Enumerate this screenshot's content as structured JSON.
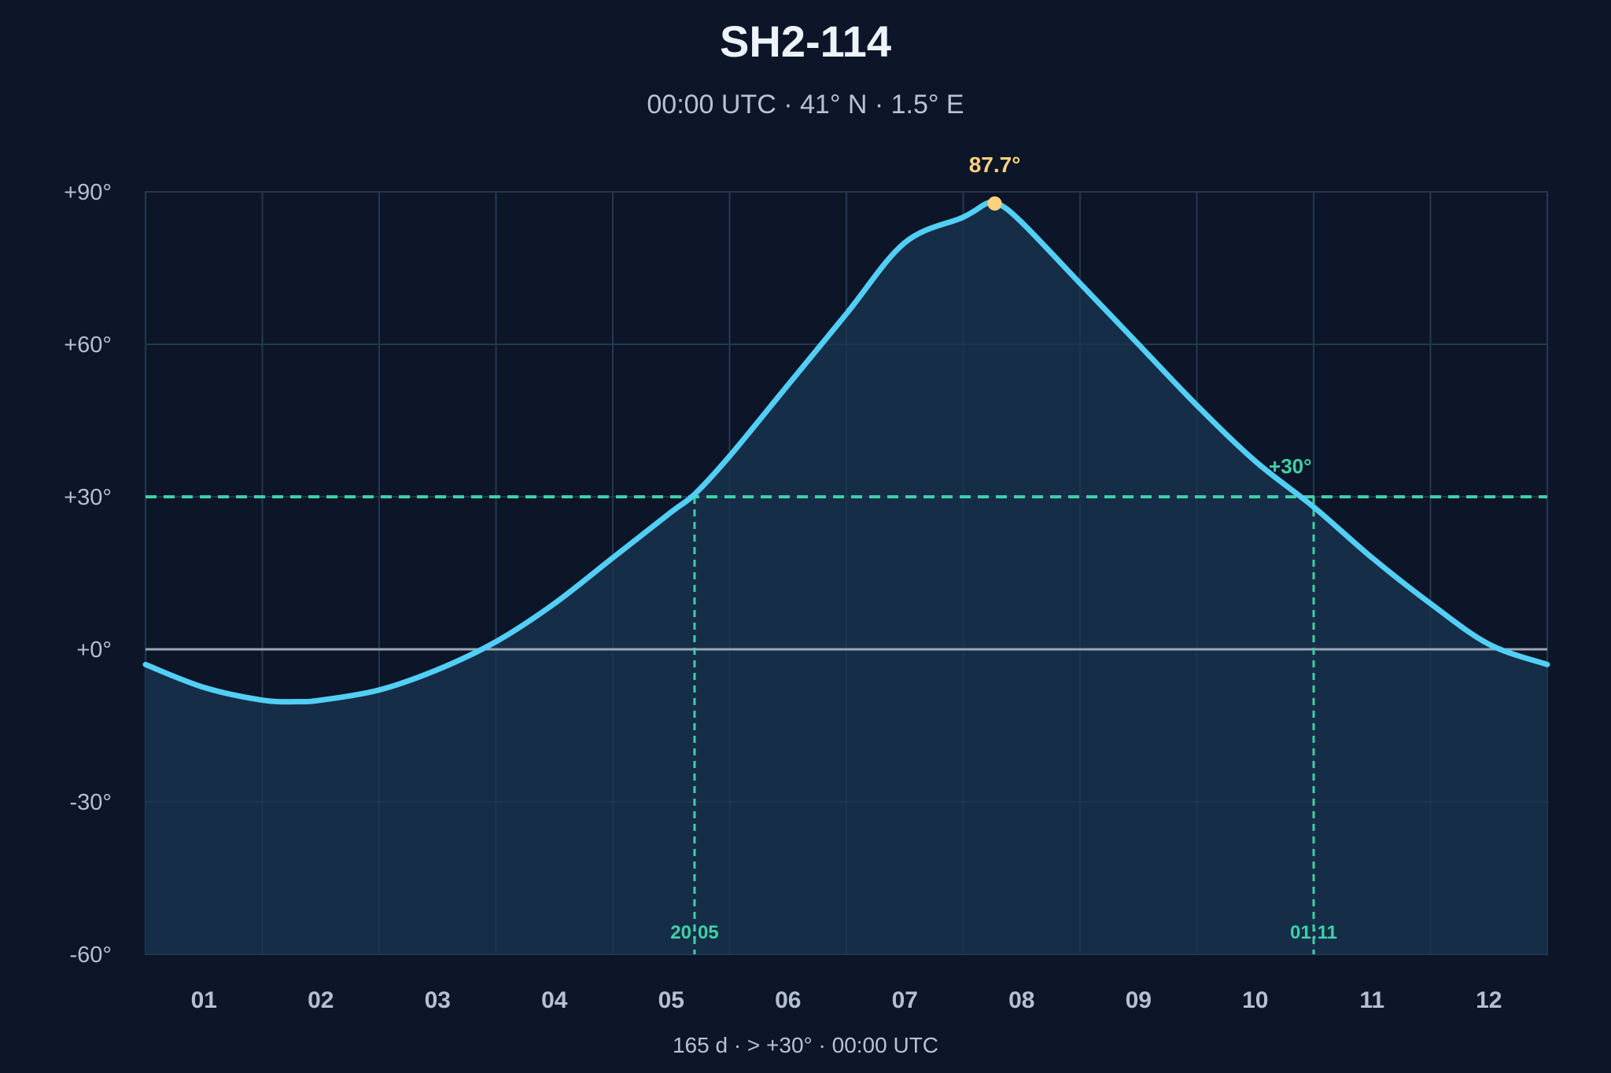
{
  "chart_data": {
    "type": "line",
    "title": "SH2-114",
    "subtitle": "00:00 UTC · 41° N · 1.5° E",
    "footer": "165 d  ·  > +30°  ·  00:00 UTC",
    "x_months": [
      "01",
      "02",
      "03",
      "04",
      "05",
      "06",
      "07",
      "08",
      "09",
      "10",
      "11",
      "12"
    ],
    "xlim": [
      0.5,
      12.5
    ],
    "ylim": [
      -60,
      90
    ],
    "y_ticks": [
      90,
      60,
      30,
      0,
      -30,
      -60
    ],
    "y_tick_labels": [
      "+90°",
      "+60°",
      "+30°",
      "+0°",
      "-30°",
      "-60°"
    ],
    "grid": true,
    "series": [
      {
        "x": [
          0.5,
          1.0,
          1.5,
          1.8,
          2.0,
          2.5,
          3.0,
          3.5,
          4.0,
          4.5,
          5.0,
          5.2,
          5.5,
          6.0,
          6.5,
          7.0,
          7.5,
          7.7,
          7.8,
          8.0,
          8.5,
          9.0,
          9.5,
          10.0,
          10.5,
          11.0,
          11.5,
          12.0,
          12.5
        ],
        "y": [
          -3,
          -7.5,
          -10,
          -10.3,
          -10,
          -8,
          -4,
          1.5,
          9,
          18,
          27,
          30.5,
          38,
          52,
          66,
          80,
          85,
          87.7,
          87.7,
          84,
          72,
          60,
          48,
          37,
          28,
          18,
          9,
          1,
          -3
        ]
      }
    ],
    "peak": {
      "x": 7.77,
      "value": 87.7,
      "label": "87.7°"
    },
    "threshold": {
      "value": 30,
      "label": "+30°"
    },
    "crossings": [
      {
        "x": 5.2,
        "label": "20:05"
      },
      {
        "x": 10.5,
        "label": "01:11"
      }
    ],
    "colors": {
      "background": "#0c1628",
      "curve": "#52cff5",
      "fill": "#17304a",
      "grid": "#253851",
      "horizon": "#9aa6b6",
      "threshold": "#3fd0a6",
      "peak": "#ffd27c",
      "tick_text": "#b4c0d0"
    }
  }
}
